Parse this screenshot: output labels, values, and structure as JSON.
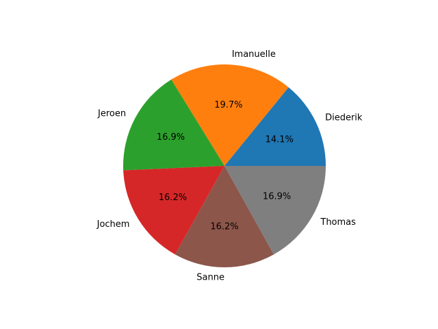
{
  "chart_data": {
    "type": "pie",
    "title": "",
    "categories": [
      "Diederik",
      "Imanuelle",
      "Jeroen",
      "Jochem",
      "Sanne",
      "Thomas"
    ],
    "values": [
      14.1,
      19.7,
      16.9,
      16.2,
      16.2,
      16.9
    ],
    "percent_labels": [
      "14.1%",
      "19.7%",
      "16.9%",
      "16.2%",
      "16.2%",
      "16.9%"
    ],
    "colors": [
      "#1f77b4",
      "#ff7f0e",
      "#2ca02c",
      "#d62728",
      "#8c564b",
      "#7f7f7f"
    ],
    "start_angle_deg": 0,
    "direction": "counterclockwise",
    "legend": "none"
  }
}
